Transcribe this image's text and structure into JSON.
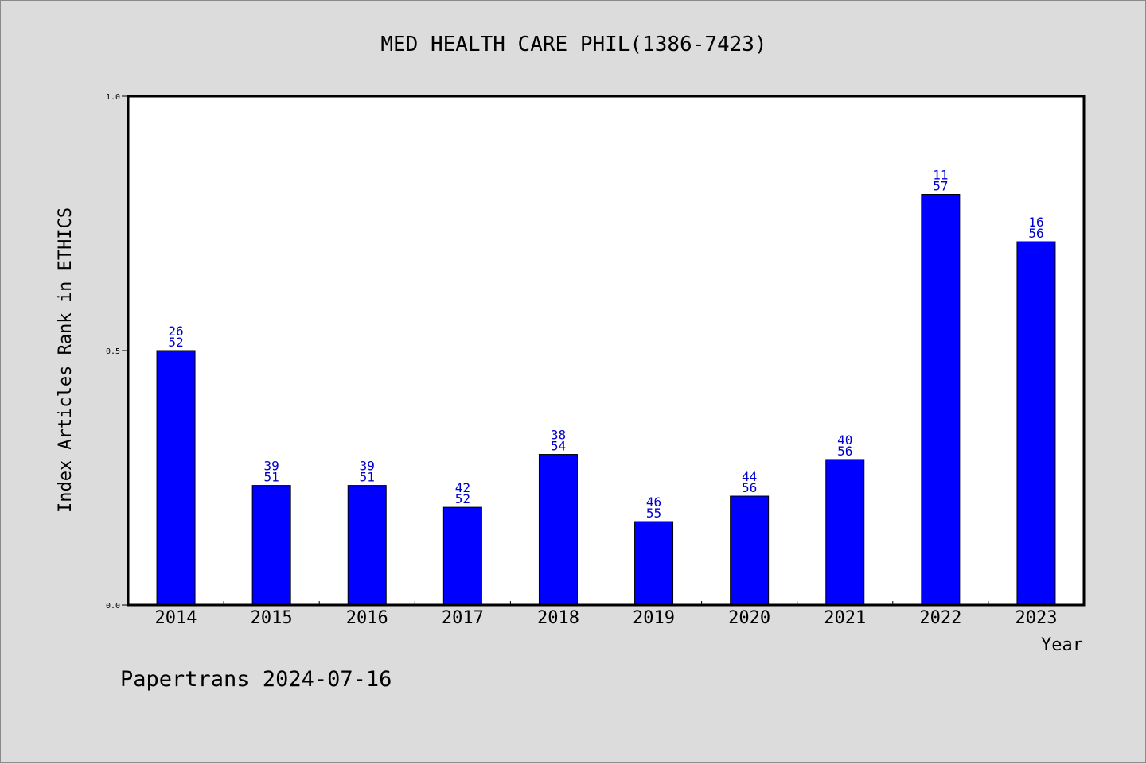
{
  "chart_data": {
    "type": "bar",
    "title": "MED HEALTH CARE PHIL(1386-7423)",
    "xlabel": "Year",
    "ylabel": "Index Articles Rank in ETHICS",
    "ylim": [
      0.0,
      1.0
    ],
    "yticks": [
      "0.0",
      "0.5",
      "1.0"
    ],
    "categories": [
      "2014",
      "2015",
      "2016",
      "2017",
      "2018",
      "2019",
      "2020",
      "2021",
      "2022",
      "2023"
    ],
    "values": [
      0.5,
      0.235,
      0.235,
      0.192,
      0.296,
      0.164,
      0.214,
      0.286,
      0.807,
      0.714
    ],
    "labels_top": [
      "26",
      "39",
      "39",
      "42",
      "38",
      "46",
      "44",
      "40",
      "11",
      "16"
    ],
    "labels_bottom": [
      "52",
      "51",
      "51",
      "52",
      "54",
      "55",
      "56",
      "56",
      "57",
      "56"
    ],
    "bar_color": "#0000ff",
    "label_color": "#0000cc",
    "grid": false,
    "legend": "none"
  },
  "footer": "Papertrans 2024-07-16"
}
